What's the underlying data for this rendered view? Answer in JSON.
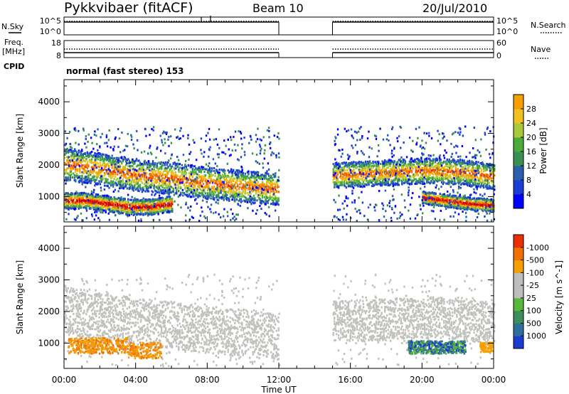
{
  "header": {
    "station": "Pykkvibaer (fitACF)",
    "beam": "Beam 10",
    "date": "20/Jul/2010"
  },
  "param_panels": {
    "nsky_label": "N.Sky",
    "nsky_ticks": [
      "10^5",
      "10^0"
    ],
    "nsearch_label": "N.Search",
    "nsearch_ticks": [
      "10^5",
      "10^0"
    ],
    "freq_label": "Freq.",
    "freq_unit": "[MHz]",
    "freq_ticks": [
      "18",
      "8"
    ],
    "nave_label": "Nave",
    "nave_ticks": [
      "60",
      "0"
    ],
    "cpid_label": "CPID",
    "cpid_value": "normal (fast stereo) 153"
  },
  "colors": {
    "power": [
      "#0000ff",
      "#1a3dd6",
      "#2b5fae",
      "#3a8f55",
      "#4aad3a",
      "#a7c93a",
      "#f0c020",
      "#f5a000",
      "#f07000",
      "#e83000",
      "#d00000"
    ],
    "velocity": [
      "#1c3bd0",
      "#2f6fa0",
      "#3c8f5a",
      "#58b83a",
      "#bdbdbd",
      "#bdbdbd",
      "#f5a000",
      "#f07000",
      "#e83000",
      "#d00000"
    ],
    "gray_scatter": "#c0c0bc"
  },
  "chart_data": [
    {
      "type": "heatmap",
      "name": "power",
      "ylabel": "Slant Range [km]",
      "xlabel": "",
      "x_ticks": [
        "00:00",
        "04:00",
        "08:00",
        "12:00",
        "16:00",
        "20:00",
        "00:00"
      ],
      "y_ticks": [
        "1000",
        "2000",
        "3000",
        "4000"
      ],
      "ylim": [
        200,
        4700
      ],
      "xlim_hours": [
        0,
        24
      ],
      "data_gap_hours": [
        12,
        15
      ],
      "colorbar_label": "Power [dB]",
      "colorbar_ticks": [
        "4",
        "8",
        "12",
        "16",
        "20",
        "24",
        "28"
      ],
      "bands": [
        {
          "start_h": 0,
          "end_h": 12,
          "center_km": [
            2050,
            1900,
            1700,
            1600,
            1450,
            1350,
            1250
          ],
          "width_km": 500
        },
        {
          "start_h": 15,
          "end_h": 24,
          "center_km": [
            1700,
            1750,
            1800,
            1850,
            1800,
            1650
          ],
          "width_km": 400
        },
        {
          "start_h": 0,
          "end_h": 6,
          "center_km": [
            900,
            900,
            800,
            700,
            700,
            800
          ],
          "width_km": 250
        },
        {
          "start_h": 20,
          "end_h": 24,
          "center_km": [
            1000,
            900,
            800,
            750
          ],
          "width_km": 200
        }
      ]
    },
    {
      "type": "heatmap",
      "name": "velocity",
      "ylabel": "Slant Range [km]",
      "xlabel": "Time UT",
      "x_ticks": [
        "00:00",
        "04:00",
        "08:00",
        "12:00",
        "16:00",
        "20:00",
        "00:00"
      ],
      "y_ticks": [
        "1000",
        "2000",
        "3000",
        "4000"
      ],
      "ylim": [
        200,
        4700
      ],
      "xlim_hours": [
        0,
        24
      ],
      "data_gap_hours": [
        12,
        15
      ],
      "colorbar_label": "Velocity [m s^-1]",
      "colorbar_ticks": [
        "1000",
        "500",
        "100",
        "25",
        "-25",
        "-100",
        "-500",
        "-1000"
      ]
    }
  ]
}
